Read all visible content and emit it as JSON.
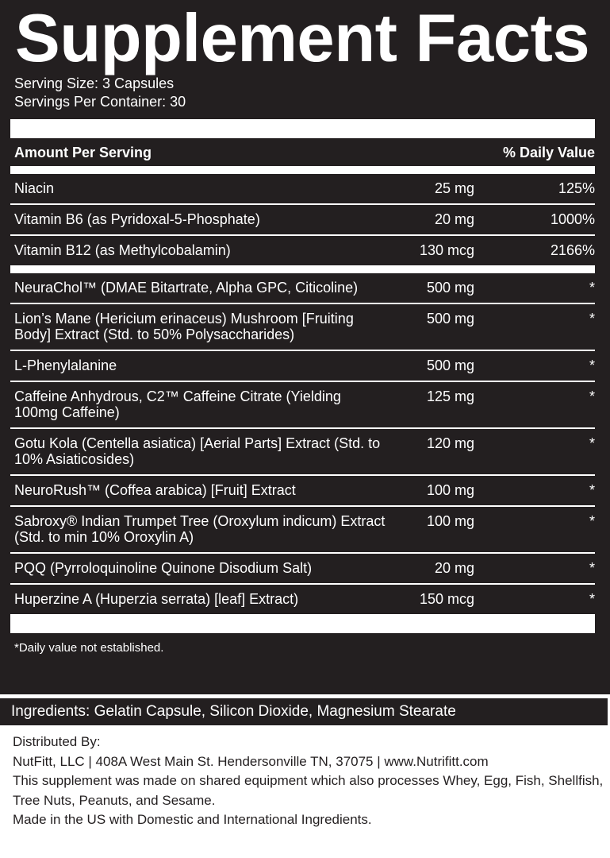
{
  "title": "Supplement Facts",
  "serving_size": "Serving Size: 3 Capsules",
  "servings_per_container": "Servings Per Container: 30",
  "header": {
    "amount": "Amount Per Serving",
    "daily_value": "% Daily Value"
  },
  "vitamins": [
    [
      "Niacin",
      "25 mg",
      "125%"
    ],
    [
      "Vitamin B6 (as Pyridoxal-5-Phosphate)",
      "20 mg",
      "1000%"
    ],
    [
      "Vitamin B12 (as Methylcobalamin)",
      "130 mcg",
      "2166%"
    ]
  ],
  "ingredients_rows": [
    [
      "NeuraChol™ (DMAE Bitartrate, Alpha GPC, Citicoline)",
      "500 mg",
      "*"
    ],
    [
      "Lion’s Mane (Hericium erinaceus) Mushroom [Fruiting Body] Extract (Std. to 50% Polysaccharides)",
      "500 mg",
      "*"
    ],
    [
      "L-Phenylalanine",
      "500 mg",
      "*"
    ],
    [
      "Caffeine Anhydrous, C2™ Caffeine Citrate (Yielding 100mg Caffeine)",
      "125 mg",
      "*"
    ],
    [
      "Gotu Kola (Centella asiatica) [Aerial Parts] Extract (Std. to 10% Asiaticosides)",
      "120 mg",
      "*"
    ],
    [
      "NeuroRush™ (Coffea arabica) [Fruit] Extract",
      "100 mg",
      "*"
    ],
    [
      "Sabroxy® Indian Trumpet Tree (Oroxylum indicum) Extract (Std. to min 10% Oroxylin A)",
      "100 mg",
      "*"
    ],
    [
      "PQQ (Pyrroloquinoline Quinone Disodium Salt)",
      "20 mg",
      "*"
    ],
    [
      "Huperzine A (Huperzia serrata) [leaf] Extract)",
      "150 mcg",
      "*"
    ]
  ],
  "footnote": "*Daily value not established.",
  "other_ingredients": "Ingredients: Gelatin Capsule, Silicon Dioxide, Magnesium Stearate",
  "distribution": [
    "Distributed By:",
    "NutFitt, LLC | 408A West Main St. Hendersonville TN, 37075 | www.Nutrifitt.com",
    "This supplement was made on shared equipment which also processes Whey, Egg, Fish, Shellfish, Tree Nuts, Peanuts, and Sesame.",
    "Made in the US with Domestic and International Ingredients."
  ]
}
